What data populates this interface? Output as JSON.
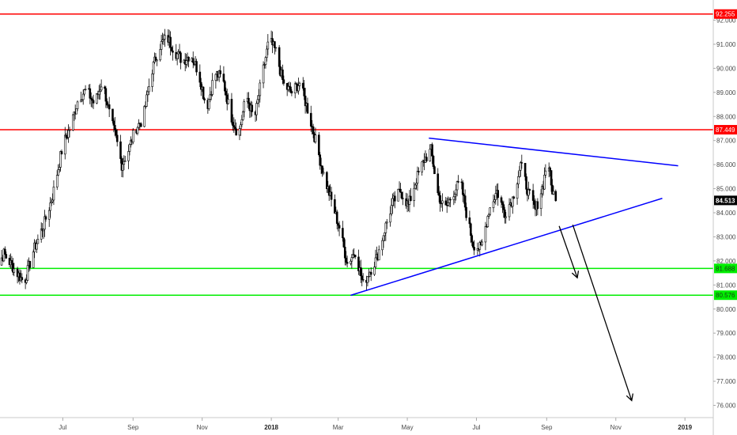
{
  "chart_data": {
    "type": "candlestick",
    "y_ticks": [
      "76.000",
      "77.000",
      "78.000",
      "79.000",
      "80.000",
      "81.000",
      "82.000",
      "83.000",
      "84.000",
      "85.000",
      "86.000",
      "87.000",
      "88.000",
      "89.000",
      "90.000",
      "91.000",
      "92.000"
    ],
    "ylim": [
      75.6,
      92.6
    ],
    "x_ticks": [
      {
        "label": "Jul",
        "date": "2017-07-01",
        "bold": false
      },
      {
        "label": "Sep",
        "date": "2017-09-01",
        "bold": false
      },
      {
        "label": "Nov",
        "date": "2017-11-01",
        "bold": false
      },
      {
        "label": "2018",
        "date": "2018-01-01",
        "bold": true
      },
      {
        "label": "Mar",
        "date": "2018-03-01",
        "bold": false
      },
      {
        "label": "May",
        "date": "2018-05-01",
        "bold": false
      },
      {
        "label": "Jul",
        "date": "2018-07-01",
        "bold": false
      },
      {
        "label": "Sep",
        "date": "2018-09-01",
        "bold": false
      },
      {
        "label": "Nov",
        "date": "2018-11-01",
        "bold": false
      },
      {
        "label": "2019",
        "date": "2019-01-01",
        "bold": true
      }
    ],
    "xlim": [
      "2017-05-01",
      "2019-01-26"
    ],
    "grid": false,
    "series": [
      {
        "close": [
          [
            "2017-05-01",
            81.5
          ],
          [
            "2017-05-10",
            82.3
          ],
          [
            "2017-05-20",
            81.6
          ],
          [
            "2017-05-28",
            81.1
          ],
          [
            "2017-06-05",
            82.4
          ],
          [
            "2017-06-15",
            83.6
          ],
          [
            "2017-06-22",
            84.7
          ],
          [
            "2017-07-01",
            86.8
          ],
          [
            "2017-07-08",
            87.6
          ],
          [
            "2017-07-15",
            88.8
          ],
          [
            "2017-07-22",
            89.1
          ],
          [
            "2017-07-29",
            88.5
          ],
          [
            "2017-08-05",
            89.5
          ],
          [
            "2017-08-12",
            87.9
          ],
          [
            "2017-08-17",
            87.1
          ],
          [
            "2017-08-22",
            86.0
          ],
          [
            "2017-08-28",
            86.6
          ],
          [
            "2017-09-03",
            87.5
          ],
          [
            "2017-09-10",
            87.9
          ],
          [
            "2017-09-17",
            89.8
          ],
          [
            "2017-09-24",
            90.9
          ],
          [
            "2017-10-01",
            91.3
          ],
          [
            "2017-10-08",
            90.7
          ],
          [
            "2017-10-15",
            90.3
          ],
          [
            "2017-10-22",
            90.6
          ],
          [
            "2017-10-29",
            89.8
          ],
          [
            "2017-11-05",
            88.3
          ],
          [
            "2017-11-12",
            89.8
          ],
          [
            "2017-11-19",
            89.6
          ],
          [
            "2017-11-26",
            88.1
          ],
          [
            "2017-12-03",
            87.2
          ],
          [
            "2017-12-10",
            88.9
          ],
          [
            "2017-12-17",
            87.8
          ],
          [
            "2017-12-24",
            89.7
          ],
          [
            "2017-12-30",
            91.2
          ],
          [
            "2018-01-05",
            90.7
          ],
          [
            "2018-01-12",
            89.3
          ],
          [
            "2018-01-19",
            89.0
          ],
          [
            "2018-01-26",
            89.4
          ],
          [
            "2018-02-02",
            88.3
          ],
          [
            "2018-02-09",
            87.0
          ],
          [
            "2018-02-16",
            85.6
          ],
          [
            "2018-02-23",
            84.5
          ],
          [
            "2018-03-02",
            83.4
          ],
          [
            "2018-03-09",
            81.9
          ],
          [
            "2018-03-16",
            82.4
          ],
          [
            "2018-03-23",
            81.0
          ],
          [
            "2018-03-28",
            81.5
          ],
          [
            "2018-04-04",
            82.1
          ],
          [
            "2018-04-11",
            83.3
          ],
          [
            "2018-04-18",
            84.4
          ],
          [
            "2018-04-25",
            84.9
          ],
          [
            "2018-05-02",
            84.3
          ],
          [
            "2018-05-09",
            85.4
          ],
          [
            "2018-05-16",
            86.2
          ],
          [
            "2018-05-22",
            86.6
          ],
          [
            "2018-05-28",
            84.8
          ],
          [
            "2018-06-03",
            84.1
          ],
          [
            "2018-06-10",
            84.8
          ],
          [
            "2018-06-17",
            85.3
          ],
          [
            "2018-06-22",
            84.0
          ],
          [
            "2018-06-28",
            82.7
          ],
          [
            "2018-07-05",
            82.5
          ],
          [
            "2018-07-12",
            84.1
          ],
          [
            "2018-07-19",
            84.9
          ],
          [
            "2018-07-26",
            84.0
          ],
          [
            "2018-08-02",
            84.6
          ],
          [
            "2018-08-09",
            86.0
          ],
          [
            "2018-08-16",
            84.8
          ],
          [
            "2018-08-22",
            84.1
          ],
          [
            "2018-08-29",
            85.2
          ],
          [
            "2018-09-02",
            86.4
          ],
          [
            "2018-09-05",
            85.1
          ],
          [
            "2018-09-09",
            84.5
          ]
        ]
      }
    ],
    "last_price": {
      "label": "84.513",
      "value": 84.513
    },
    "levels": [
      {
        "label": "92.255",
        "value": 92.255,
        "color": "#ff0000"
      },
      {
        "label": "87.449",
        "value": 87.449,
        "color": "#ff0000"
      },
      {
        "label": "81.688",
        "value": 81.688,
        "color": "#00ee00"
      },
      {
        "label": "80.576",
        "value": 80.576,
        "color": "#00ee00"
      }
    ],
    "trendlines": [
      {
        "from": [
          "2018-05-20",
          87.1
        ],
        "to": [
          "2018-12-26",
          85.95
        ],
        "color": "#0000ff"
      },
      {
        "from": [
          "2018-03-12",
          80.57
        ],
        "to": [
          "2018-12-12",
          84.6
        ],
        "color": "#0000ff"
      }
    ],
    "arrows": [
      {
        "from": [
          "2018-09-12",
          83.45
        ],
        "to": [
          "2018-09-28",
          81.3
        ],
        "color": "#000000"
      },
      {
        "from": [
          "2018-09-24",
          83.5
        ],
        "to": [
          "2018-11-15",
          76.2
        ],
        "color": "#000000"
      }
    ]
  }
}
